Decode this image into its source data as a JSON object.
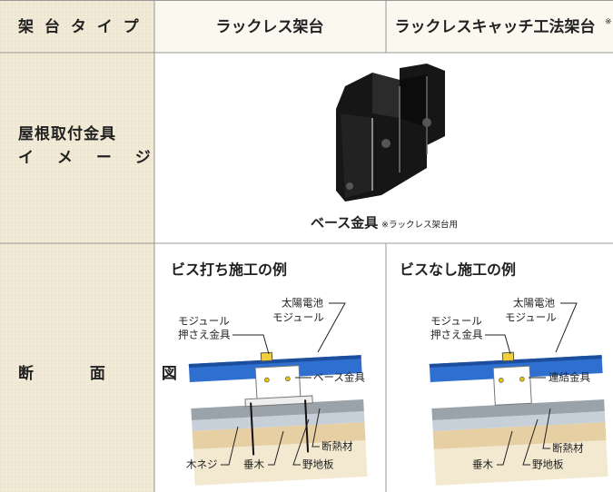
{
  "table": {
    "header": {
      "row_label": "架 台 タ イ プ",
      "columns": [
        "ラックレス架台",
        "ラックレスキャッチ工法架台"
      ],
      "column_note": "※"
    },
    "rows": [
      {
        "label": [
          "屋根取付金具",
          "イ メ ー ジ"
        ],
        "image_caption": "ベース金具",
        "image_note": "※ラックレス架台用"
      },
      {
        "label": "断 面 図",
        "diagrams": [
          {
            "title": "ビス打ち施工の例",
            "labels": {
              "module": [
                "太陽電池",
                "モジュール"
              ],
              "clamp": [
                "モジュール",
                "押さえ金具"
              ],
              "fitting": "ベース金具",
              "screw": "木ネジ",
              "rafter": "垂木",
              "insulation": "断熱材",
              "sheathing": "野地板"
            }
          },
          {
            "title": "ビスなし施工の例",
            "labels": {
              "module": [
                "太陽電池",
                "モジュール"
              ],
              "clamp": [
                "モジュール",
                "押さえ金具"
              ],
              "fitting": "連結金具",
              "rafter": "垂木",
              "insulation": "断熱材",
              "sheathing": "野地板"
            }
          }
        ]
      }
    ]
  }
}
